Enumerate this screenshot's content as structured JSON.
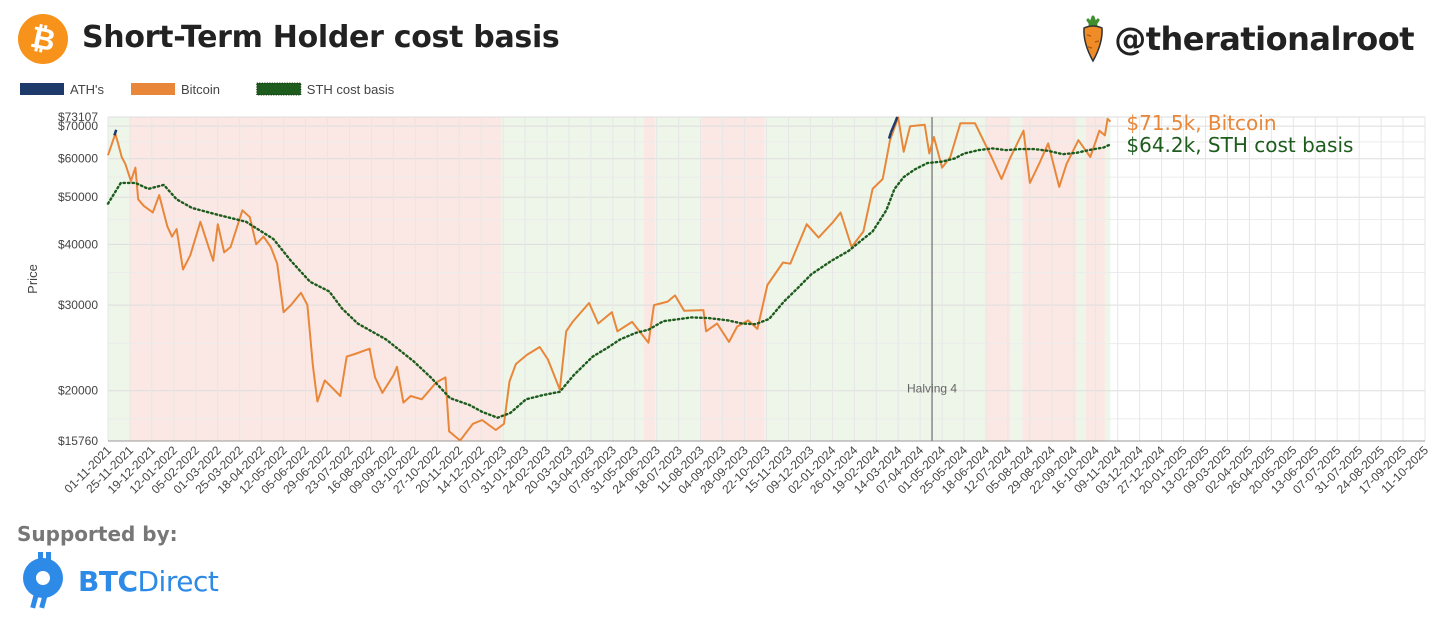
{
  "header": {
    "title": "Short-Term Holder cost basis",
    "brand_handle": "@therationalroot",
    "icon_btc": "bitcoin-logo",
    "icon_brand": "carrot-icon"
  },
  "footer": {
    "supported_label": "Supported by:",
    "sponsor_name_bold": "BTC",
    "sponsor_name_rest": "Direct",
    "sponsor_icon": "btc-direct-logo"
  },
  "chart_data": {
    "type": "line",
    "y_scale": "log",
    "ylabel": "Price",
    "ylim": [
      15760,
      73107
    ],
    "yticks": [
      {
        "value": 73107,
        "label": "$73107"
      },
      {
        "value": 70000,
        "label": "$70000"
      },
      {
        "value": 60000,
        "label": "$60000"
      },
      {
        "value": 50000,
        "label": "$50000"
      },
      {
        "value": 40000,
        "label": "$40000"
      },
      {
        "value": 30000,
        "label": "$30000"
      },
      {
        "value": 20000,
        "label": "$20000"
      },
      {
        "value": 15760,
        "label": "$15760"
      }
    ],
    "xlim": [
      "2021-11-01",
      "2025-10-11"
    ],
    "xtick_labels": [
      "01-11-2021",
      "25-11-2021",
      "19-12-2021",
      "12-01-2022",
      "05-02-2022",
      "01-03-2022",
      "25-03-2022",
      "18-04-2022",
      "12-05-2022",
      "05-06-2022",
      "29-06-2022",
      "23-07-2022",
      "16-08-2022",
      "09-09-2022",
      "03-10-2022",
      "27-10-2022",
      "20-11-2022",
      "14-12-2022",
      "07-01-2023",
      "31-01-2023",
      "24-02-2023",
      "20-03-2023",
      "13-04-2023",
      "07-05-2023",
      "31-05-2023",
      "24-06-2023",
      "18-07-2023",
      "11-08-2023",
      "04-09-2023",
      "28-09-2023",
      "22-10-2023",
      "15-11-2023",
      "09-12-2023",
      "02-01-2024",
      "26-01-2024",
      "19-02-2024",
      "14-03-2024",
      "07-04-2024",
      "01-05-2024",
      "25-05-2024",
      "18-06-2024",
      "12-07-2024",
      "05-08-2024",
      "29-08-2024",
      "22-09-2024",
      "16-10-2024",
      "09-11-2024",
      "03-12-2024",
      "27-12-2024",
      "20-01-2025",
      "13-02-2025",
      "09-03-2025",
      "02-04-2025",
      "26-04-2025",
      "20-05-2025",
      "13-06-2025",
      "07-07-2025",
      "31-07-2025",
      "24-08-2025",
      "17-09-2025",
      "11-10-2025"
    ],
    "legend": {
      "placement": "top-left",
      "entries": [
        {
          "name": "ATH's",
          "color": "#1d3a6b"
        },
        {
          "name": "Bitcoin",
          "color": "#e8873a"
        },
        {
          "name": "STH cost basis",
          "color": "#1e5c1e"
        }
      ]
    },
    "series": [
      {
        "name": "Bitcoin",
        "color": "#e8873a",
        "points": [
          [
            "2021-11-01",
            61000
          ],
          [
            "2021-11-09",
            67500
          ],
          [
            "2021-11-12",
            64500
          ],
          [
            "2021-11-16",
            60500
          ],
          [
            "2021-11-20",
            58500
          ],
          [
            "2021-11-26",
            54000
          ],
          [
            "2021-12-01",
            57500
          ],
          [
            "2021-12-04",
            49500
          ],
          [
            "2021-12-10",
            48000
          ],
          [
            "2021-12-20",
            46500
          ],
          [
            "2021-12-27",
            50500
          ],
          [
            "2022-01-05",
            43500
          ],
          [
            "2022-01-10",
            41500
          ],
          [
            "2022-01-15",
            43000
          ],
          [
            "2022-01-22",
            35500
          ],
          [
            "2022-01-30",
            38000
          ],
          [
            "2022-02-10",
            44500
          ],
          [
            "2022-02-18",
            40000
          ],
          [
            "2022-02-24",
            37000
          ],
          [
            "2022-03-01",
            44000
          ],
          [
            "2022-03-08",
            38500
          ],
          [
            "2022-03-15",
            39500
          ],
          [
            "2022-03-28",
            47000
          ],
          [
            "2022-04-05",
            45500
          ],
          [
            "2022-04-12",
            40000
          ],
          [
            "2022-04-20",
            41500
          ],
          [
            "2022-04-28",
            39500
          ],
          [
            "2022-05-05",
            36500
          ],
          [
            "2022-05-12",
            29000
          ],
          [
            "2022-05-20",
            30000
          ],
          [
            "2022-05-31",
            31800
          ],
          [
            "2022-06-07",
            30000
          ],
          [
            "2022-06-13",
            22500
          ],
          [
            "2022-06-18",
            19000
          ],
          [
            "2022-06-26",
            21000
          ],
          [
            "2022-07-05",
            20200
          ],
          [
            "2022-07-13",
            19500
          ],
          [
            "2022-07-20",
            23500
          ],
          [
            "2022-07-29",
            23800
          ],
          [
            "2022-08-14",
            24400
          ],
          [
            "2022-08-20",
            21300
          ],
          [
            "2022-08-28",
            19800
          ],
          [
            "2022-09-09",
            21500
          ],
          [
            "2022-09-13",
            22400
          ],
          [
            "2022-09-20",
            18900
          ],
          [
            "2022-09-28",
            19500
          ],
          [
            "2022-10-10",
            19200
          ],
          [
            "2022-10-26",
            20800
          ],
          [
            "2022-11-05",
            21300
          ],
          [
            "2022-11-09",
            16500
          ],
          [
            "2022-11-21",
            15800
          ],
          [
            "2022-12-05",
            17100
          ],
          [
            "2022-12-15",
            17400
          ],
          [
            "2022-12-30",
            16600
          ],
          [
            "2023-01-08",
            17100
          ],
          [
            "2023-01-14",
            20900
          ],
          [
            "2023-01-21",
            22700
          ],
          [
            "2023-02-02",
            23700
          ],
          [
            "2023-02-16",
            24600
          ],
          [
            "2023-02-25",
            23200
          ],
          [
            "2023-03-10",
            20100
          ],
          [
            "2023-03-17",
            26500
          ],
          [
            "2023-03-24",
            27700
          ],
          [
            "2023-04-11",
            30300
          ],
          [
            "2023-04-21",
            27500
          ],
          [
            "2023-05-06",
            29000
          ],
          [
            "2023-05-12",
            26500
          ],
          [
            "2023-05-28",
            27700
          ],
          [
            "2023-06-15",
            25100
          ],
          [
            "2023-06-21",
            30000
          ],
          [
            "2023-07-06",
            30500
          ],
          [
            "2023-07-14",
            31400
          ],
          [
            "2023-07-24",
            29200
          ],
          [
            "2023-08-14",
            29300
          ],
          [
            "2023-08-17",
            26500
          ],
          [
            "2023-08-29",
            27500
          ],
          [
            "2023-09-11",
            25200
          ],
          [
            "2023-09-20",
            27100
          ],
          [
            "2023-10-02",
            27900
          ],
          [
            "2023-10-12",
            26800
          ],
          [
            "2023-10-23",
            33000
          ],
          [
            "2023-11-09",
            36700
          ],
          [
            "2023-11-17",
            36500
          ],
          [
            "2023-12-05",
            44000
          ],
          [
            "2023-12-18",
            41300
          ],
          [
            "2024-01-03",
            44500
          ],
          [
            "2024-01-11",
            46500
          ],
          [
            "2024-01-23",
            39500
          ],
          [
            "2024-02-05",
            42500
          ],
          [
            "2024-02-15",
            52000
          ],
          [
            "2024-02-26",
            54500
          ],
          [
            "2024-03-05",
            65500
          ],
          [
            "2024-03-14",
            73000
          ],
          [
            "2024-03-20",
            62000
          ],
          [
            "2024-03-27",
            70000
          ],
          [
            "2024-04-12",
            70500
          ],
          [
            "2024-04-17",
            61500
          ],
          [
            "2024-04-22",
            66500
          ],
          [
            "2024-05-01",
            57500
          ],
          [
            "2024-05-10",
            60500
          ],
          [
            "2024-05-21",
            71000
          ],
          [
            "2024-06-06",
            71000
          ],
          [
            "2024-06-24",
            60500
          ],
          [
            "2024-07-05",
            54500
          ],
          [
            "2024-07-14",
            60000
          ],
          [
            "2024-07-29",
            68500
          ],
          [
            "2024-08-05",
            53500
          ],
          [
            "2024-08-15",
            58500
          ],
          [
            "2024-08-25",
            64500
          ],
          [
            "2024-09-06",
            52500
          ],
          [
            "2024-09-14",
            58500
          ],
          [
            "2024-09-27",
            65500
          ],
          [
            "2024-10-10",
            60500
          ],
          [
            "2024-10-20",
            68500
          ],
          [
            "2024-10-26",
            67000
          ],
          [
            "2024-10-29",
            72500
          ],
          [
            "2024-11-01",
            71500
          ]
        ]
      },
      {
        "name": "STH cost basis",
        "color": "#1e5c1e",
        "points": [
          [
            "2021-11-01",
            48500
          ],
          [
            "2021-11-15",
            53500
          ],
          [
            "2021-12-01",
            53500
          ],
          [
            "2021-12-15",
            52000
          ],
          [
            "2022-01-01",
            53000
          ],
          [
            "2022-01-15",
            49500
          ],
          [
            "2022-02-01",
            47500
          ],
          [
            "2022-03-01",
            46000
          ],
          [
            "2022-04-01",
            44500
          ],
          [
            "2022-05-01",
            41000
          ],
          [
            "2022-05-20",
            37000
          ],
          [
            "2022-06-10",
            33500
          ],
          [
            "2022-07-01",
            32000
          ],
          [
            "2022-07-15",
            29500
          ],
          [
            "2022-08-01",
            27500
          ],
          [
            "2022-09-01",
            25500
          ],
          [
            "2022-10-01",
            23000
          ],
          [
            "2022-10-20",
            21300
          ],
          [
            "2022-11-10",
            19300
          ],
          [
            "2022-12-01",
            18700
          ],
          [
            "2022-12-15",
            18100
          ],
          [
            "2023-01-01",
            17600
          ],
          [
            "2023-01-15",
            18000
          ],
          [
            "2023-02-01",
            19200
          ],
          [
            "2023-02-20",
            19600
          ],
          [
            "2023-03-10",
            19900
          ],
          [
            "2023-03-25",
            21500
          ],
          [
            "2023-04-15",
            23500
          ],
          [
            "2023-05-01",
            24500
          ],
          [
            "2023-05-15",
            25500
          ],
          [
            "2023-06-01",
            26300
          ],
          [
            "2023-06-15",
            26700
          ],
          [
            "2023-07-01",
            27800
          ],
          [
            "2023-07-20",
            28100
          ],
          [
            "2023-08-01",
            28300
          ],
          [
            "2023-08-20",
            28200
          ],
          [
            "2023-09-10",
            27900
          ],
          [
            "2023-09-25",
            27500
          ],
          [
            "2023-10-10",
            27400
          ],
          [
            "2023-10-25",
            28100
          ],
          [
            "2023-11-10",
            30500
          ],
          [
            "2023-11-25",
            32500
          ],
          [
            "2023-12-10",
            34700
          ],
          [
            "2024-01-01",
            37000
          ],
          [
            "2024-01-20",
            38800
          ],
          [
            "2024-02-01",
            40500
          ],
          [
            "2024-02-15",
            42500
          ],
          [
            "2024-03-01",
            47000
          ],
          [
            "2024-03-10",
            52000
          ],
          [
            "2024-03-20",
            55000
          ],
          [
            "2024-04-01",
            57000
          ],
          [
            "2024-04-15",
            58800
          ],
          [
            "2024-05-01",
            59200
          ],
          [
            "2024-05-15",
            60100
          ],
          [
            "2024-05-25",
            61500
          ],
          [
            "2024-06-10",
            62500
          ],
          [
            "2024-06-25",
            63000
          ],
          [
            "2024-07-10",
            62500
          ],
          [
            "2024-07-25",
            62800
          ],
          [
            "2024-08-10",
            62800
          ],
          [
            "2024-08-25",
            62300
          ],
          [
            "2024-09-10",
            61300
          ],
          [
            "2024-09-25",
            61700
          ],
          [
            "2024-10-10",
            62600
          ],
          [
            "2024-10-25",
            63300
          ],
          [
            "2024-11-01",
            64200
          ]
        ]
      },
      {
        "name": "ATH's",
        "color": "#1d3a6b",
        "points": [
          [
            "2021-11-08",
            67000
          ],
          [
            "2021-11-10",
            68800
          ],
          [
            "2024-03-04",
            66000
          ],
          [
            "2024-03-06",
            67900
          ],
          [
            "2024-03-11",
            71500
          ],
          [
            "2024-03-13",
            73107
          ]
        ]
      }
    ],
    "bands": [
      {
        "start": "2021-11-01",
        "end": "2021-11-25",
        "color": "green"
      },
      {
        "start": "2021-11-25",
        "end": "2023-01-05",
        "color": "red"
      },
      {
        "start": "2023-01-05",
        "end": "2023-06-10",
        "color": "green"
      },
      {
        "start": "2023-06-10",
        "end": "2023-06-22",
        "color": "red"
      },
      {
        "start": "2023-06-22",
        "end": "2023-08-12",
        "color": "green"
      },
      {
        "start": "2023-08-12",
        "end": "2023-10-20",
        "color": "red"
      },
      {
        "start": "2023-10-20",
        "end": "2024-06-18",
        "color": "green"
      },
      {
        "start": "2024-06-18",
        "end": "2024-07-15",
        "color": "red"
      },
      {
        "start": "2024-07-15",
        "end": "2024-07-28",
        "color": "green"
      },
      {
        "start": "2024-07-28",
        "end": "2024-09-25",
        "color": "red"
      },
      {
        "start": "2024-09-25",
        "end": "2024-10-05",
        "color": "green"
      },
      {
        "start": "2024-10-05",
        "end": "2024-10-26",
        "color": "red"
      },
      {
        "start": "2024-10-26",
        "end": "2024-11-01",
        "color": "green"
      }
    ],
    "band_colors": {
      "green": "#eef6ea",
      "red": "#fbe8e4"
    },
    "halving": {
      "date": "2024-04-20",
      "label": "Halving 4",
      "label_value": 20000
    },
    "annotations": [
      {
        "text": "$71.5k, Bitcoin",
        "color": "#e8873a"
      },
      {
        "text": "$64.2k, STH cost basis",
        "color": "#1e5c1e"
      }
    ],
    "grid": true
  }
}
